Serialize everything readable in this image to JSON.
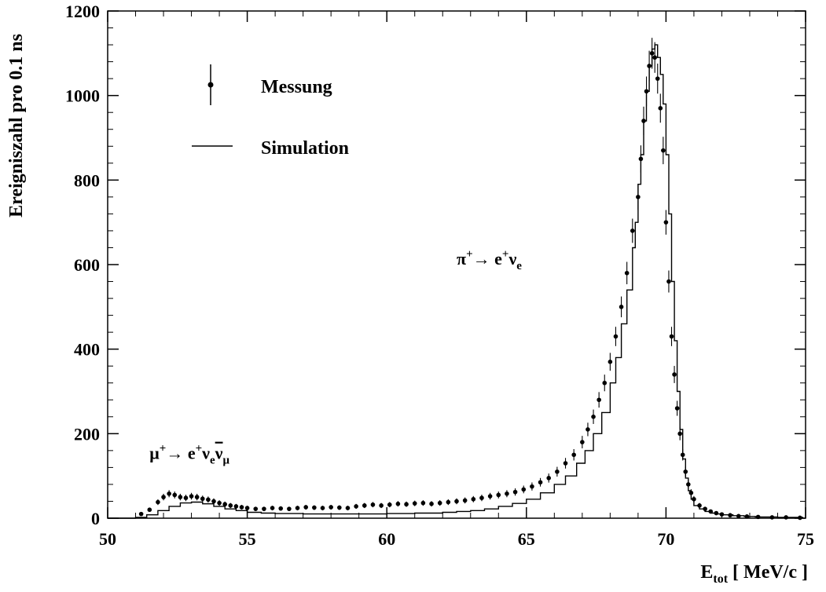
{
  "chart_data": {
    "type": "scatter",
    "title": "",
    "xlabel_main": "E",
    "xlabel_sub": "tot",
    "xlabel_unit": " [ MeV/c ]",
    "ylabel": "Ereigniszahl pro 0.1 ns",
    "xlim": [
      50,
      75
    ],
    "ylim": [
      0,
      1200
    ],
    "xticks": [
      "50",
      "55",
      "60",
      "65",
      "70",
      "75"
    ],
    "yticks": [
      "0",
      "200",
      "400",
      "600",
      "800",
      "1000",
      "1200"
    ],
    "grid": false,
    "legend": {
      "placement": "top-left",
      "entries": [
        {
          "label": "Messung",
          "style": "points-with-errorbars"
        },
        {
          "label": "Simulation",
          "style": "step-line"
        }
      ]
    },
    "annotations": [
      {
        "id": "pi",
        "parts": [
          "π",
          "+",
          "→ e",
          "+",
          "ν",
          "e"
        ],
        "x": 62.5,
        "y": 600
      },
      {
        "id": "mu",
        "parts": [
          "μ",
          "+",
          "→ e",
          "+",
          "ν",
          "e",
          "ν",
          "μ"
        ],
        "x": 51.5,
        "y": 140
      }
    ],
    "series": [
      {
        "name": "Simulation",
        "kind": "step",
        "x": [
          50.0,
          51.0,
          51.4,
          51.8,
          52.2,
          52.6,
          53.0,
          53.4,
          53.8,
          54.2,
          54.6,
          55.0,
          55.5,
          56.0,
          57.0,
          58.0,
          59.0,
          60.0,
          61.0,
          62.0,
          62.5,
          63.0,
          63.5,
          64.0,
          64.5,
          65.0,
          65.5,
          66.0,
          66.4,
          66.8,
          67.1,
          67.4,
          67.7,
          68.0,
          68.2,
          68.4,
          68.6,
          68.8,
          68.9,
          69.0,
          69.1,
          69.2,
          69.3,
          69.4,
          69.5,
          69.6,
          69.7,
          69.8,
          69.9,
          70.0,
          70.1,
          70.2,
          70.3,
          70.4,
          70.5,
          70.6,
          70.7,
          70.8,
          70.9,
          71.0,
          71.2,
          71.4,
          71.6,
          71.8,
          72.0,
          72.4,
          72.8,
          73.2,
          74.0,
          74.9
        ],
        "values": [
          0,
          2,
          8,
          18,
          28,
          36,
          38,
          34,
          28,
          22,
          18,
          14,
          12,
          11,
          10,
          10,
          10,
          11,
          12,
          14,
          16,
          18,
          22,
          28,
          35,
          45,
          60,
          80,
          100,
          130,
          160,
          200,
          250,
          320,
          380,
          460,
          540,
          640,
          700,
          790,
          860,
          940,
          1010,
          1070,
          1110,
          1120,
          1090,
          1050,
          980,
          860,
          720,
          560,
          420,
          300,
          210,
          140,
          95,
          65,
          45,
          30,
          22,
          16,
          12,
          10,
          8,
          6,
          4,
          3,
          2,
          0
        ]
      },
      {
        "name": "Messung",
        "kind": "points",
        "x": [
          51.2,
          51.5,
          51.8,
          52.0,
          52.2,
          52.4,
          52.6,
          52.8,
          53.0,
          53.2,
          53.4,
          53.6,
          53.8,
          54.0,
          54.2,
          54.4,
          54.6,
          54.8,
          55.0,
          55.3,
          55.6,
          55.9,
          56.2,
          56.5,
          56.8,
          57.1,
          57.4,
          57.7,
          58.0,
          58.3,
          58.6,
          58.9,
          59.2,
          59.5,
          59.8,
          60.1,
          60.4,
          60.7,
          61.0,
          61.3,
          61.6,
          61.9,
          62.2,
          62.5,
          62.8,
          63.1,
          63.4,
          63.7,
          64.0,
          64.3,
          64.6,
          64.9,
          65.2,
          65.5,
          65.8,
          66.1,
          66.4,
          66.7,
          67.0,
          67.2,
          67.4,
          67.6,
          67.8,
          68.0,
          68.2,
          68.4,
          68.6,
          68.8,
          69.0,
          69.1,
          69.2,
          69.3,
          69.4,
          69.5,
          69.6,
          69.7,
          69.8,
          69.9,
          70.0,
          70.1,
          70.2,
          70.3,
          70.4,
          70.5,
          70.6,
          70.7,
          70.8,
          70.9,
          71.0,
          71.2,
          71.4,
          71.6,
          71.8,
          72.0,
          72.3,
          72.6,
          72.9,
          73.3,
          73.8,
          74.3,
          74.8
        ],
        "values": [
          10,
          20,
          38,
          50,
          58,
          55,
          50,
          48,
          52,
          50,
          46,
          44,
          40,
          36,
          33,
          30,
          28,
          26,
          24,
          22,
          22,
          24,
          23,
          22,
          24,
          26,
          25,
          24,
          26,
          25,
          24,
          28,
          30,
          32,
          30,
          32,
          34,
          33,
          35,
          36,
          34,
          36,
          38,
          40,
          42,
          45,
          48,
          52,
          55,
          58,
          62,
          68,
          75,
          85,
          95,
          110,
          130,
          150,
          180,
          210,
          240,
          280,
          320,
          370,
          430,
          500,
          580,
          680,
          760,
          850,
          940,
          1010,
          1070,
          1100,
          1090,
          1040,
          970,
          870,
          700,
          560,
          430,
          340,
          260,
          200,
          150,
          110,
          80,
          60,
          45,
          30,
          22,
          16,
          12,
          9,
          7,
          5,
          4,
          3,
          2,
          2,
          1
        ]
      }
    ]
  }
}
